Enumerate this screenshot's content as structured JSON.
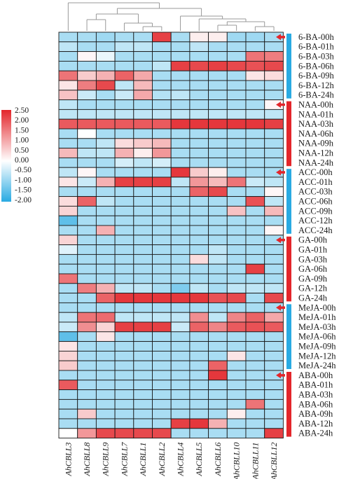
{
  "chart_data": {
    "type": "heatmap",
    "title": "",
    "xlabel": "",
    "ylabel": "",
    "columns": [
      "AhCBLL3",
      "AhCBLL8",
      "AhCBLL9",
      "AhCBLL7",
      "AhCBLL1",
      "AhCBLL2",
      "AhCBLL4",
      "AhCBLL5",
      "AhCBLL6",
      "AhCBLL10",
      "AhCBLL11",
      "AhCBLL12"
    ],
    "rows": [
      "6-BA-00h",
      "6-BA-01h",
      "6-BA-03h",
      "6-BA-06h",
      "6-BA-09h",
      "6-BA-12h",
      "6-BA-24h",
      "NAA-00h",
      "NAA-01h",
      "NAA-03h",
      "NAA-06h",
      "NAA-09h",
      "NAA-12h",
      "NAA-24h",
      "ACC-00h",
      "ACC-01h",
      "ACC-03h",
      "ACC-06h",
      "ACC-09h",
      "ACC-12h",
      "ACC-24h",
      "GA-00h",
      "GA-01h",
      "GA-03h",
      "GA-06h",
      "GA-09h",
      "GA-12h",
      "GA-24h",
      "MeJA-00h",
      "MeJA-01h",
      "MeJA-03h",
      "MeJA-06h",
      "MeJA-09h",
      "MeJA-12h",
      "MeJA-24h",
      "ABA-00h",
      "ABA-01h",
      "ABA-03h",
      "ABA-06h",
      "ABA-09h",
      "ABA-12h",
      "ABA-24h"
    ],
    "values": [
      [
        -0.8,
        -0.8,
        -0.9,
        -0.8,
        -0.8,
        2.2,
        -0.8,
        0.2,
        0.2,
        -0.9,
        -0.9,
        -0.8
      ],
      [
        -0.6,
        -0.8,
        -0.8,
        -0.6,
        -0.6,
        -0.8,
        -0.8,
        -0.6,
        -0.8,
        -0.8,
        -0.8,
        -0.8
      ],
      [
        -0.8,
        0.1,
        -0.2,
        -0.8,
        -0.8,
        -0.8,
        -0.8,
        -0.8,
        -0.8,
        -0.8,
        1.6,
        1.5
      ],
      [
        -0.8,
        -0.8,
        -0.8,
        -0.8,
        -0.8,
        -0.6,
        2.2,
        2.1,
        2.2,
        2.1,
        2.0,
        2.1
      ],
      [
        1.6,
        0.6,
        0.9,
        1.8,
        1.0,
        -0.8,
        -0.8,
        -0.8,
        -0.8,
        -0.8,
        0.3,
        0.4
      ],
      [
        0.3,
        1.5,
        2.1,
        -0.6,
        0.8,
        -0.8,
        -0.8,
        -0.8,
        -0.8,
        -0.8,
        -0.8,
        -0.8
      ],
      [
        0.7,
        -0.5,
        -0.8,
        -0.5,
        1.0,
        -0.7,
        -0.6,
        -0.8,
        -0.8,
        -0.8,
        -0.8,
        -0.8
      ],
      [
        -0.6,
        -0.8,
        -0.8,
        -0.8,
        -0.8,
        -0.8,
        -0.8,
        -0.8,
        -0.8,
        -0.8,
        -0.8,
        0.1
      ],
      [
        -0.6,
        -0.6,
        -0.6,
        -0.6,
        -0.6,
        -0.6,
        -0.6,
        -0.6,
        -0.6,
        -0.6,
        -0.6,
        -0.6
      ],
      [
        1.9,
        1.9,
        1.9,
        1.9,
        1.9,
        1.9,
        2.3,
        2.3,
        2.3,
        2.3,
        2.3,
        2.2
      ],
      [
        -0.8,
        0.0,
        -0.8,
        -0.8,
        -0.8,
        -0.8,
        -0.8,
        -0.8,
        -0.8,
        -0.8,
        -0.8,
        -0.8
      ],
      [
        -0.8,
        -0.8,
        -0.6,
        0.4,
        0.6,
        0.8,
        -0.8,
        -0.8,
        -0.8,
        -0.8,
        -0.8,
        -0.8
      ],
      [
        0.8,
        -0.6,
        -0.6,
        0.9,
        0.2,
        1.2,
        -0.8,
        -0.8,
        -0.8,
        -0.8,
        -0.8,
        -0.8
      ],
      [
        -0.8,
        -0.8,
        -0.8,
        -0.4,
        -0.6,
        -0.4,
        -0.8,
        -0.8,
        -0.8,
        -0.8,
        -0.8,
        -0.8
      ],
      [
        -0.6,
        0.1,
        -0.8,
        -0.8,
        -0.8,
        -0.8,
        2.3,
        0.6,
        0.2,
        -0.8,
        -0.8,
        -0.8
      ],
      [
        0.3,
        -0.5,
        0.9,
        2.2,
        2.2,
        2.2,
        -0.6,
        1.2,
        0.8,
        1.6,
        -0.5,
        -0.6
      ],
      [
        -0.8,
        -0.8,
        -0.8,
        -0.8,
        -0.8,
        -0.8,
        -0.8,
        1.8,
        2.1,
        -0.8,
        -0.8,
        0.1
      ],
      [
        0.4,
        1.8,
        -0.6,
        -0.8,
        -0.8,
        -0.8,
        -0.8,
        -0.8,
        -0.8,
        -0.8,
        2.0,
        -0.6
      ],
      [
        0.5,
        -0.8,
        -0.8,
        -0.8,
        -0.8,
        -0.8,
        -0.8,
        -0.8,
        -0.8,
        0.7,
        -0.8,
        0.8
      ],
      [
        -1.5,
        -0.8,
        -0.8,
        -0.8,
        -0.8,
        -0.8,
        -0.8,
        -0.8,
        -0.8,
        -0.8,
        -0.8,
        -0.8
      ],
      [
        -0.8,
        -0.8,
        0.9,
        -0.8,
        -0.8,
        -0.8,
        -0.8,
        -0.8,
        -0.8,
        -0.8,
        -0.8,
        0.1
      ],
      [
        0.5,
        -0.8,
        -0.8,
        -0.8,
        -0.8,
        -0.8,
        -0.8,
        -0.8,
        -0.8,
        -0.8,
        -0.8,
        -0.8
      ],
      [
        -0.3,
        -0.8,
        -0.8,
        -0.8,
        -0.8,
        -0.8,
        -0.8,
        -0.8,
        -0.6,
        -0.8,
        -0.8,
        -0.8
      ],
      [
        -0.8,
        -0.8,
        -0.8,
        -0.8,
        -0.8,
        -0.8,
        -0.8,
        0.4,
        -0.6,
        -0.8,
        -0.8,
        -0.8
      ],
      [
        -0.8,
        -0.8,
        -0.8,
        -0.8,
        -0.8,
        -0.8,
        -0.8,
        -0.8,
        -0.8,
        -0.8,
        2.2,
        -0.8
      ],
      [
        1.6,
        -0.8,
        -0.8,
        -0.8,
        -0.8,
        -0.8,
        -0.8,
        -0.8,
        -0.8,
        -0.8,
        -0.8,
        -0.8
      ],
      [
        -0.8,
        1.5,
        0.9,
        -0.6,
        -0.6,
        -0.8,
        -1.2,
        -0.6,
        -0.8,
        -0.6,
        -0.6,
        -0.6
      ],
      [
        -0.8,
        -0.8,
        1.8,
        2.3,
        2.3,
        2.3,
        2.3,
        2.3,
        2.0,
        2.1,
        -0.8,
        2.1
      ],
      [
        -0.8,
        -0.8,
        -0.8,
        -0.8,
        -0.8,
        -0.8,
        -0.8,
        -0.8,
        -0.8,
        -0.8,
        -0.8,
        -0.8
      ],
      [
        -0.6,
        1.6,
        1.7,
        -0.6,
        -0.6,
        -0.6,
        -0.6,
        1.3,
        -0.6,
        1.4,
        1.8,
        1.0
      ],
      [
        -0.5,
        1.3,
        0.5,
        2.2,
        2.2,
        2.2,
        -0.5,
        1.8,
        1.4,
        1.9,
        2.0,
        1.9
      ],
      [
        -1.5,
        -0.8,
        0.3,
        -0.8,
        -0.8,
        -0.8,
        -0.8,
        -0.8,
        -0.8,
        -0.8,
        -0.8,
        -0.8
      ],
      [
        0.3,
        -0.8,
        -0.8,
        -0.8,
        -0.8,
        -0.8,
        -0.8,
        -0.8,
        -0.8,
        -0.8,
        -0.8,
        -0.8
      ],
      [
        0.5,
        -0.8,
        -0.8,
        -0.8,
        -0.8,
        -0.8,
        -0.8,
        -0.8,
        -0.8,
        0.3,
        -0.8,
        -0.8
      ],
      [
        0.6,
        -0.8,
        -0.8,
        -0.8,
        -0.8,
        -0.8,
        -0.8,
        -0.8,
        1.8,
        -0.8,
        -0.8,
        -0.8
      ],
      [
        -0.8,
        -0.8,
        -0.8,
        -0.8,
        -0.8,
        -0.8,
        -0.8,
        -0.8,
        2.3,
        -0.8,
        -0.8,
        -0.8
      ],
      [
        1.9,
        -0.8,
        -0.8,
        -0.8,
        -0.8,
        -0.8,
        -0.8,
        -0.8,
        -0.8,
        -0.8,
        -0.8,
        -0.8
      ],
      [
        -0.8,
        -0.8,
        -0.8,
        -0.8,
        -0.8,
        -0.8,
        -0.8,
        -0.8,
        -0.8,
        -0.8,
        -0.8,
        -0.8
      ],
      [
        -0.8,
        -0.8,
        -0.8,
        -0.8,
        -0.8,
        -0.8,
        -0.8,
        -0.8,
        -0.8,
        -0.8,
        1.6,
        -0.8
      ],
      [
        -0.8,
        0.6,
        -0.8,
        -0.8,
        -0.8,
        -0.8,
        -0.8,
        -0.8,
        -0.8,
        0.2,
        -0.8,
        -0.8
      ],
      [
        -0.8,
        -0.8,
        -0.8,
        -0.8,
        -0.8,
        -0.8,
        2.2,
        2.3,
        0.9,
        -0.8,
        -0.8,
        -0.8
      ],
      [
        0.0,
        1.2,
        2.1,
        2.1,
        2.1,
        2.1,
        -0.8,
        -0.8,
        -0.8,
        -0.8,
        -0.8,
        2.2
      ]
    ],
    "colorscale": {
      "min": -2.0,
      "max": 2.5,
      "low": "#29aae2",
      "mid": "#ffffff",
      "high": "#e3262b",
      "ticks": [
        "2.50",
        "2.00",
        "1.50",
        "1.00",
        "0.50",
        "0.00",
        "-0.50",
        "-1.00",
        "-1.50",
        "-2.00"
      ]
    },
    "groups": [
      "6-BA",
      "NAA",
      "ACC",
      "GA",
      "MeJA",
      "ABA"
    ],
    "group_colors": [
      "#29aae2",
      "#e3262b",
      "#29aae2",
      "#e3262b",
      "#29aae2",
      "#e3262b"
    ],
    "arrow_color": "#e3262b",
    "column_dendrogram": true,
    "grid": true,
    "legend": "left"
  }
}
